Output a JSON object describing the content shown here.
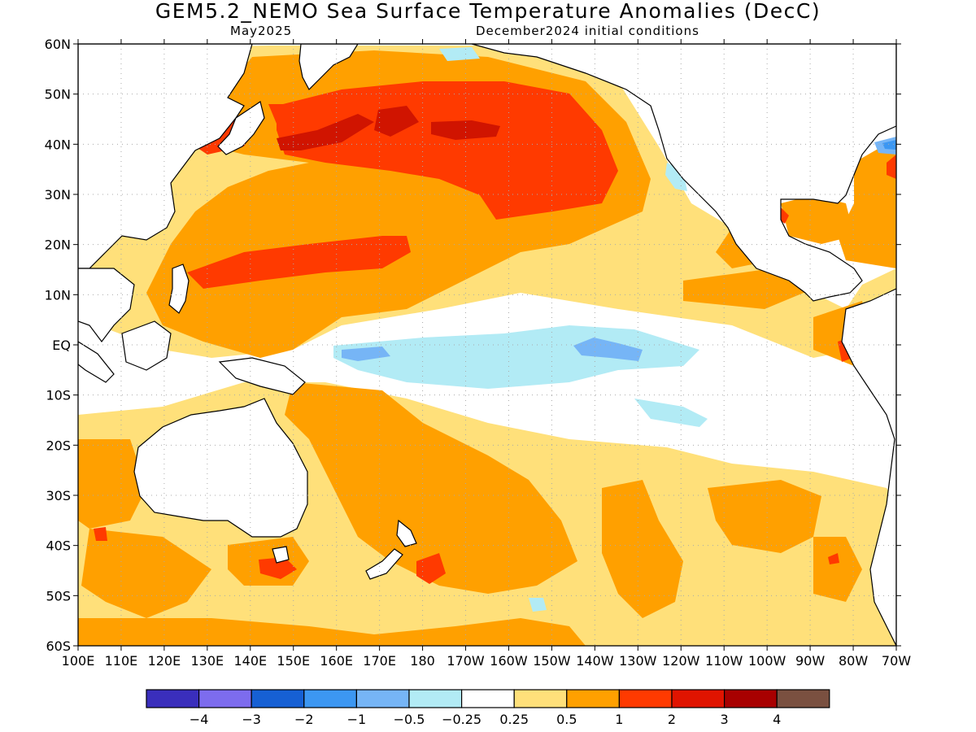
{
  "title": "GEM5.2_NEMO Sea Surface Temperature Anomalies (DecC)",
  "subtitle_left": "May2025",
  "subtitle_right": "December2024 initial conditions",
  "colors": {
    "c_m4": "#3a2ebc",
    "c_m3": "#7d6cee",
    "c_m2": "#1660d4",
    "c_m1": "#3c97f2",
    "c_m05": "#76b5f6",
    "c_m025": "#b2ebf5",
    "c_0": "#ffffff",
    "c_p025": "#ffe07a",
    "c_p05": "#ffa000",
    "c_p1": "#ff3a00",
    "c_p2": "#e01400",
    "c_p3": "#a80000",
    "c_p4": "#7a5040",
    "land": "#ffffff",
    "coast": "#000000"
  },
  "lat_labels": [
    "60N",
    "50N",
    "40N",
    "30N",
    "20N",
    "10N",
    "EQ",
    "10S",
    "20S",
    "30S",
    "40S",
    "50S",
    "60S"
  ],
  "lon_labels": [
    "100E",
    "110E",
    "120E",
    "130E",
    "140E",
    "150E",
    "160E",
    "170E",
    "180",
    "170W",
    "160W",
    "150W",
    "140W",
    "130W",
    "120W",
    "110W",
    "100W",
    "90W",
    "80W",
    "70W"
  ],
  "legend": {
    "labels": [
      "−4",
      "−3",
      "−2",
      "−1",
      "−0.5",
      "−0.25",
      "0.25",
      "0.5",
      "1",
      "2",
      "3",
      "4"
    ],
    "bins": [
      "#3a2ebc",
      "#7d6cee",
      "#1660d4",
      "#3c97f2",
      "#76b5f6",
      "#b2ebf5",
      "#ffffff",
      "#ffe07a",
      "#ffa000",
      "#ff3a00",
      "#e01400",
      "#a80000",
      "#7a5040"
    ]
  }
}
